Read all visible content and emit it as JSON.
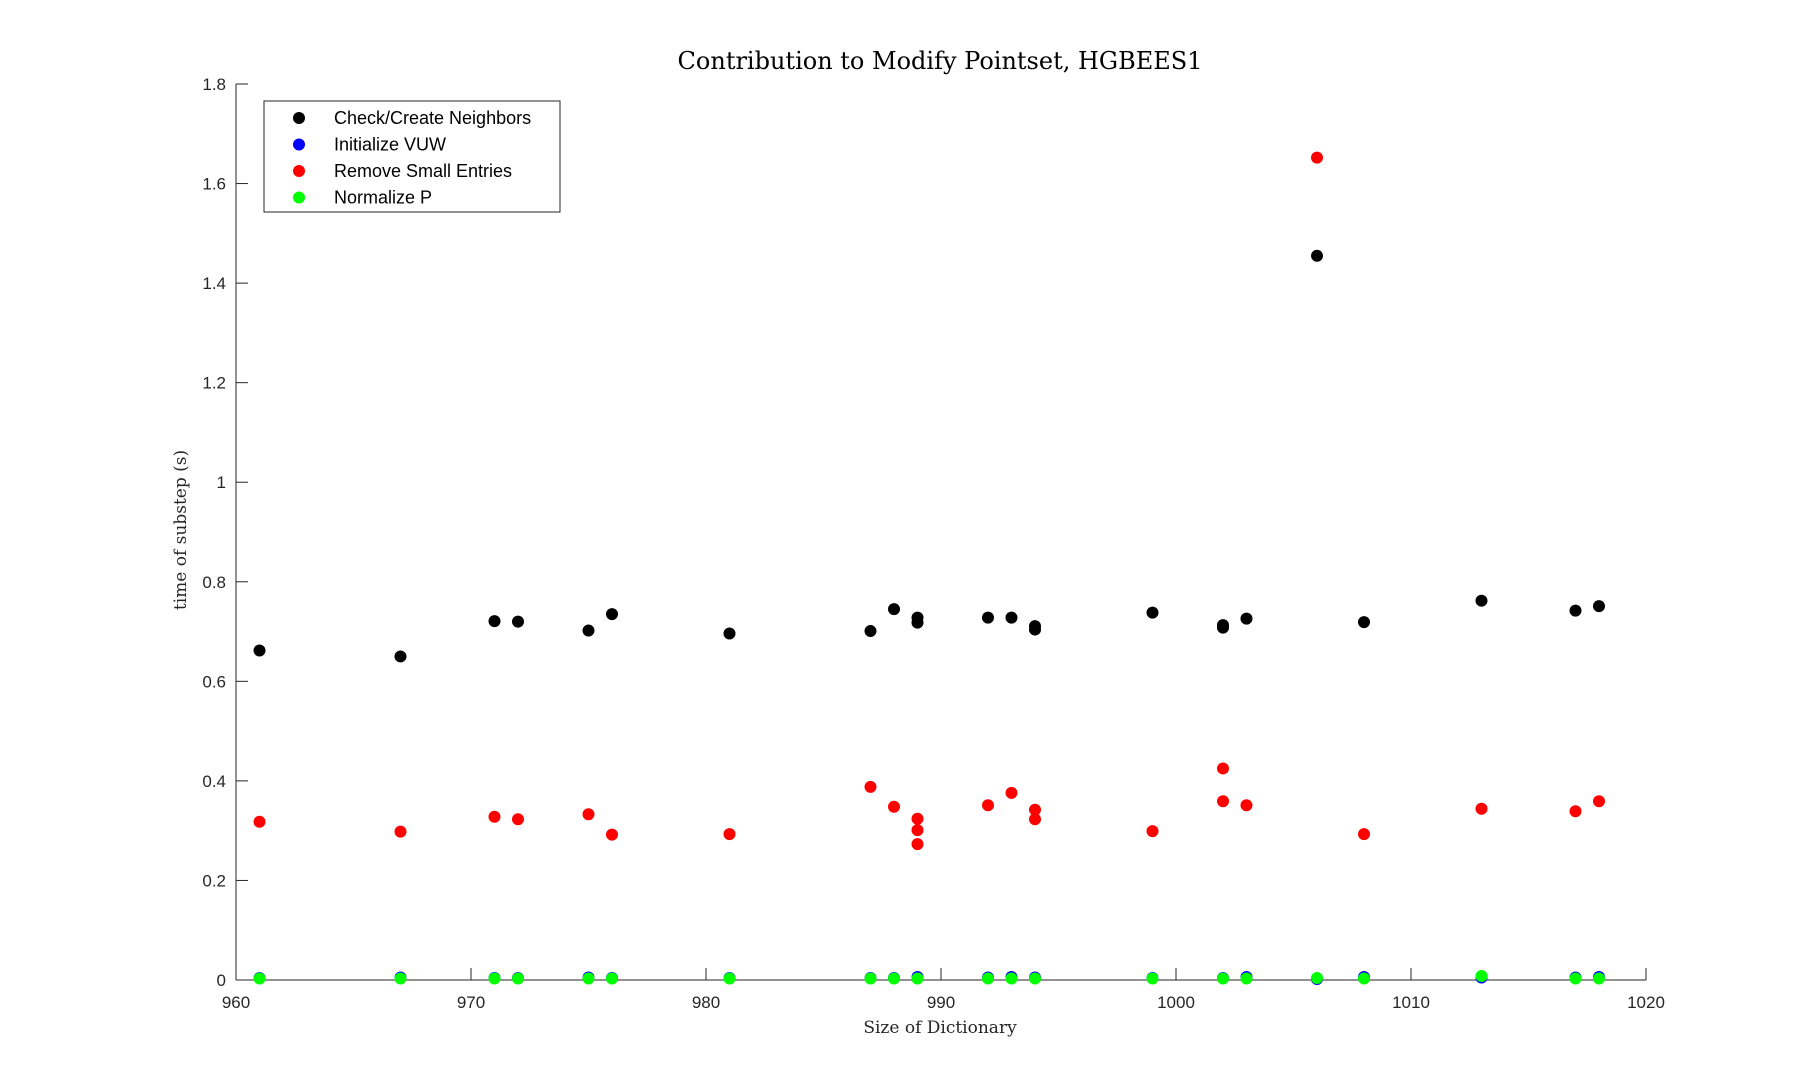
{
  "chart_data": {
    "type": "scatter",
    "title": "Contribution to Modify Pointset, HGBEES1",
    "xlabel": "Size of Dictionary",
    "ylabel": "time of substep (s)",
    "xlim": [
      960,
      1020
    ],
    "ylim": [
      0,
      1.8
    ],
    "xticks": [
      "960",
      "970",
      "980",
      "990",
      "1000",
      "1010",
      "1020"
    ],
    "yticks": [
      "0",
      "0.2",
      "0.4",
      "0.6",
      "0.8",
      "1",
      "1.2",
      "1.4",
      "1.6",
      "1.8"
    ],
    "grid": false,
    "legend_position": "top-left",
    "series": [
      {
        "name": "Check/Create Neighbors",
        "color": "#000000",
        "x": [
          961,
          967,
          971,
          972,
          975,
          976,
          981,
          987,
          988,
          989,
          989,
          992,
          993,
          994,
          994,
          999,
          1002,
          1002,
          1003,
          1006,
          1008,
          1013,
          1017,
          1018
        ],
        "y": [
          0.662,
          0.65,
          0.721,
          0.72,
          0.702,
          0.735,
          0.696,
          0.701,
          0.745,
          0.728,
          0.718,
          0.728,
          0.728,
          0.711,
          0.704,
          0.738,
          0.713,
          0.708,
          0.726,
          1.455,
          0.719,
          0.762,
          0.742,
          0.751
        ]
      },
      {
        "name": "Initialize VUW",
        "color": "#0000ff",
        "x": [
          961,
          967,
          971,
          972,
          975,
          976,
          981,
          987,
          988,
          989,
          992,
          993,
          994,
          999,
          1002,
          1003,
          1006,
          1008,
          1013,
          1017,
          1018
        ],
        "y": [
          0.004,
          0.005,
          0.004,
          0.004,
          0.005,
          0.004,
          0.004,
          0.004,
          0.004,
          0.006,
          0.005,
          0.006,
          0.005,
          0.004,
          0.004,
          0.006,
          0.002,
          0.006,
          0.005,
          0.005,
          0.006
        ]
      },
      {
        "name": "Remove Small Entries",
        "color": "#ff0000",
        "x": [
          961,
          967,
          971,
          972,
          975,
          976,
          981,
          987,
          988,
          989,
          989,
          989,
          992,
          993,
          994,
          994,
          999,
          1002,
          1002,
          1003,
          1006,
          1008,
          1013,
          1017,
          1018
        ],
        "y": [
          0.318,
          0.298,
          0.328,
          0.323,
          0.333,
          0.292,
          0.293,
          0.388,
          0.348,
          0.324,
          0.301,
          0.273,
          0.351,
          0.376,
          0.342,
          0.323,
          0.299,
          0.425,
          0.359,
          0.351,
          1.652,
          0.293,
          0.344,
          0.339,
          0.359
        ]
      },
      {
        "name": "Normalize P",
        "color": "#00ff00",
        "x": [
          961,
          967,
          971,
          972,
          975,
          976,
          981,
          987,
          988,
          989,
          992,
          993,
          994,
          999,
          1002,
          1003,
          1006,
          1008,
          1013,
          1017,
          1018
        ],
        "y": [
          0.003,
          0.003,
          0.003,
          0.003,
          0.003,
          0.003,
          0.003,
          0.003,
          0.003,
          0.003,
          0.003,
          0.003,
          0.003,
          0.003,
          0.003,
          0.003,
          0.004,
          0.003,
          0.008,
          0.003,
          0.003
        ]
      }
    ]
  }
}
